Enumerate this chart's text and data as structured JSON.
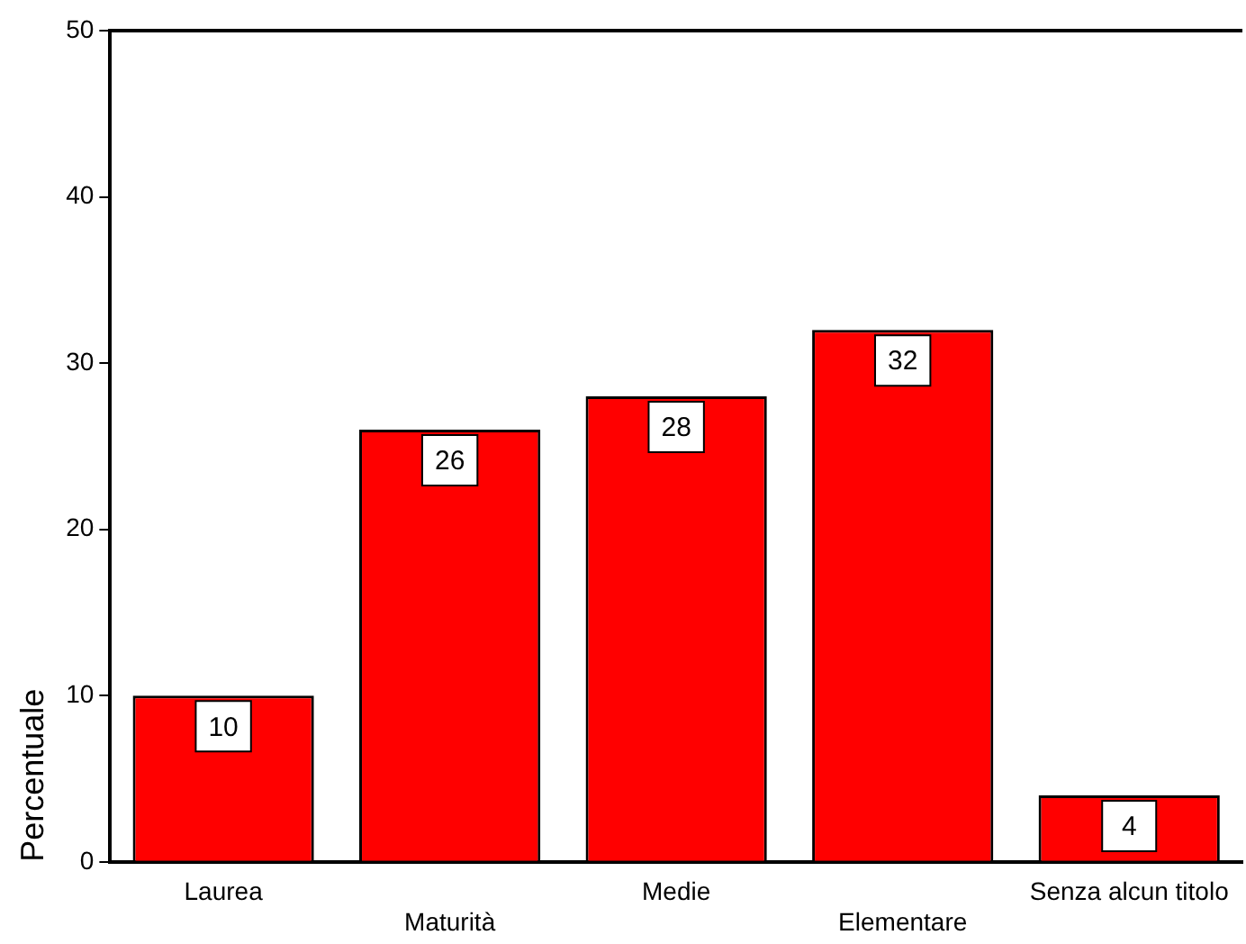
{
  "chart_data": {
    "type": "bar",
    "ylabel": "Percentuale",
    "categories": [
      "Laurea",
      "Maturità",
      "Medie",
      "Elementare",
      "Senza alcun titolo"
    ],
    "values": [
      10,
      26,
      28,
      32,
      4
    ],
    "color": "#ff0000",
    "ylim": [
      0,
      50
    ],
    "yticks": [
      0,
      10,
      20,
      30,
      40,
      50
    ],
    "grid": false,
    "legend": false,
    "data_labels": true
  }
}
